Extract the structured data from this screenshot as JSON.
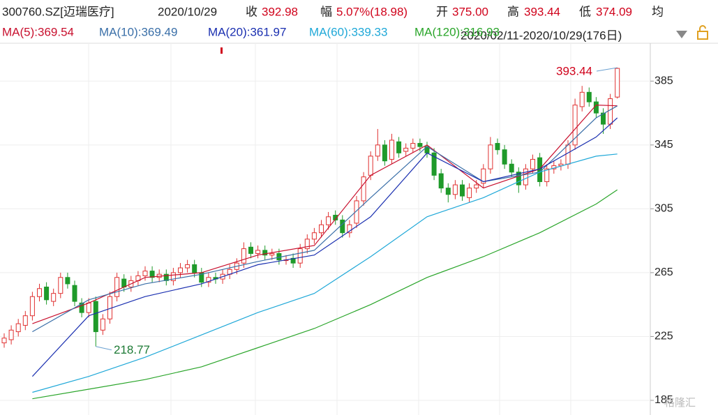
{
  "header": {
    "symbol": "300760.SZ[迈瑞医疗]",
    "date": "2020/10/29",
    "close_label": "收",
    "close": "392.98",
    "change_label": "幅",
    "change": "5.07%(18.98)",
    "open_label": "开",
    "open": "375.00",
    "high_label": "高",
    "high": "393.44",
    "low_label": "低",
    "low": "374.09",
    "avg_label": "均",
    "range": "2020/02/11-2020/10/29(176日)"
  },
  "chart_data": {
    "type": "candlestick",
    "categories": [
      null,
      null,
      null,
      null,
      null,
      null,
      null,
      null,
      null,
      null,
      null,
      null,
      null,
      null,
      null,
      null,
      null,
      null,
      null,
      null,
      null,
      null,
      null,
      null,
      null,
      null,
      null,
      null,
      null,
      null,
      null,
      null,
      null,
      null,
      null,
      null,
      null,
      null,
      null,
      null,
      null,
      null,
      null,
      null,
      null,
      null,
      null,
      null,
      null,
      null,
      null,
      null,
      null,
      null,
      null,
      null,
      null,
      null,
      null,
      null,
      null,
      null,
      null,
      null,
      null,
      null,
      null,
      null,
      null,
      null,
      null,
      null,
      null,
      null,
      null,
      null,
      null,
      null,
      null,
      null,
      null,
      null,
      null,
      null,
      null,
      null,
      null,
      null
    ],
    "open": [
      221,
      223,
      228,
      232,
      238,
      250,
      256,
      247,
      252,
      262,
      257,
      246,
      240,
      247,
      229,
      236,
      250,
      261,
      256,
      260,
      263,
      266,
      262,
      264,
      260,
      265,
      268,
      270,
      265,
      259,
      262,
      261,
      264,
      267,
      271,
      281,
      277,
      279,
      276,
      277,
      273,
      274,
      271,
      280,
      286,
      290,
      295,
      301,
      298,
      290,
      296,
      310,
      326,
      338,
      345,
      336,
      347,
      341,
      343,
      346,
      344,
      340,
      327,
      318,
      314,
      320,
      312,
      318,
      321,
      330,
      346,
      342,
      333,
      328,
      320,
      330,
      337,
      322,
      330,
      332,
      333,
      345,
      369,
      378,
      372,
      365,
      358,
      375
    ],
    "high": [
      227,
      232,
      236,
      241,
      253,
      258,
      259,
      255,
      265,
      265,
      260,
      249,
      249,
      250,
      239,
      253,
      265,
      264,
      263,
      266,
      269,
      269,
      267,
      267,
      268,
      271,
      273,
      273,
      268,
      265,
      265,
      267,
      270,
      274,
      284,
      284,
      282,
      282,
      280,
      280,
      276,
      277,
      283,
      289,
      293,
      298,
      303,
      304,
      301,
      298,
      313,
      328,
      341,
      355,
      348,
      352,
      350,
      346,
      349,
      349,
      347,
      343,
      330,
      321,
      323,
      323,
      321,
      323,
      333,
      350,
      349,
      345,
      336,
      331,
      333,
      339,
      340,
      333,
      335,
      336,
      348,
      374,
      382,
      381,
      375,
      368,
      377,
      393.44
    ],
    "low": [
      218,
      220,
      225,
      229,
      235,
      247,
      245,
      244,
      249,
      255,
      244,
      237,
      237,
      218.77,
      226,
      233,
      247,
      253,
      253,
      257,
      260,
      259,
      259,
      257,
      257,
      262,
      265,
      262,
      256,
      256,
      258,
      258,
      261,
      264,
      268,
      274,
      274,
      273,
      273,
      270,
      270,
      268,
      268,
      277,
      283,
      287,
      292,
      295,
      287,
      287,
      293,
      307,
      323,
      335,
      332,
      333,
      337,
      338,
      340,
      341,
      337,
      323,
      315,
      309,
      311,
      310,
      309,
      315,
      318,
      327,
      339,
      330,
      325,
      315,
      317,
      327,
      319,
      319,
      327,
      329,
      330,
      342,
      366,
      369,
      362,
      352,
      355,
      374.09
    ],
    "close": [
      224,
      229,
      233,
      238,
      250,
      255,
      248,
      252,
      262,
      258,
      247,
      240,
      246,
      228,
      236,
      250,
      262,
      256,
      260,
      263,
      266,
      262,
      264,
      260,
      265,
      268,
      270,
      265,
      259,
      262,
      261,
      264,
      267,
      271,
      280,
      277,
      279,
      276,
      277,
      273,
      273,
      271,
      280,
      286,
      290,
      295,
      300,
      298,
      290,
      295,
      310,
      325,
      338,
      345,
      335,
      348,
      340,
      343,
      346,
      344,
      340,
      326,
      318,
      314,
      320,
      313,
      318,
      320,
      330,
      345,
      342,
      333,
      328,
      320,
      330,
      336,
      322,
      330,
      332,
      333,
      345,
      370,
      378,
      372,
      365,
      358,
      374,
      392.98
    ],
    "up_color": "#e03131",
    "down_color": "#1f9a2a",
    "series": [
      {
        "name": "MA(5):369.54",
        "color": "#c8102e",
        "x": [
          4,
          12,
          20,
          28,
          36,
          44,
          52,
          60,
          68,
          76,
          84,
          87
        ],
        "values": [
          233,
          246,
          262,
          265,
          276,
          282,
          326,
          345,
          318,
          330,
          370,
          369.54
        ]
      },
      {
        "name": "MA(10):369.49",
        "color": "#3a6fa8",
        "x": [
          4,
          12,
          20,
          28,
          36,
          44,
          52,
          60,
          68,
          76,
          84,
          87
        ],
        "values": [
          228,
          248,
          258,
          264,
          272,
          279,
          312,
          344,
          322,
          328,
          362,
          369.49
        ]
      },
      {
        "name": "MA(20):361.97",
        "color": "#1a2fb0",
        "x": [
          4,
          12,
          20,
          28,
          36,
          44,
          52,
          60,
          68,
          76,
          84,
          87
        ],
        "values": [
          200,
          238,
          250,
          258,
          270,
          276,
          300,
          340,
          322,
          330,
          350,
          361.97
        ]
      },
      {
        "name": "MA(60):339.33",
        "color": "#1fa8d8",
        "x": [
          4,
          12,
          20,
          28,
          36,
          44,
          52,
          60,
          68,
          76,
          84,
          87
        ],
        "values": [
          190,
          200,
          212,
          226,
          240,
          252,
          275,
          300,
          312,
          328,
          338,
          339.33
        ]
      },
      {
        "name": "MA(120):316.93",
        "color": "#2aa52a",
        "x": [
          4,
          12,
          20,
          28,
          36,
          44,
          52,
          60,
          68,
          76,
          84,
          87
        ],
        "values": [
          186,
          192,
          198,
          206,
          218,
          230,
          245,
          262,
          275,
          290,
          308,
          316.93
        ]
      }
    ],
    "annotations": [
      {
        "text": "393.44",
        "index": 87,
        "value": 393.44
      },
      {
        "text": "218.77",
        "index": 13,
        "value": 218.77
      }
    ],
    "ylim": [
      178,
      409.6
    ],
    "yticks": [
      185,
      225,
      265,
      305,
      345,
      385
    ],
    "grid": true
  }
}
